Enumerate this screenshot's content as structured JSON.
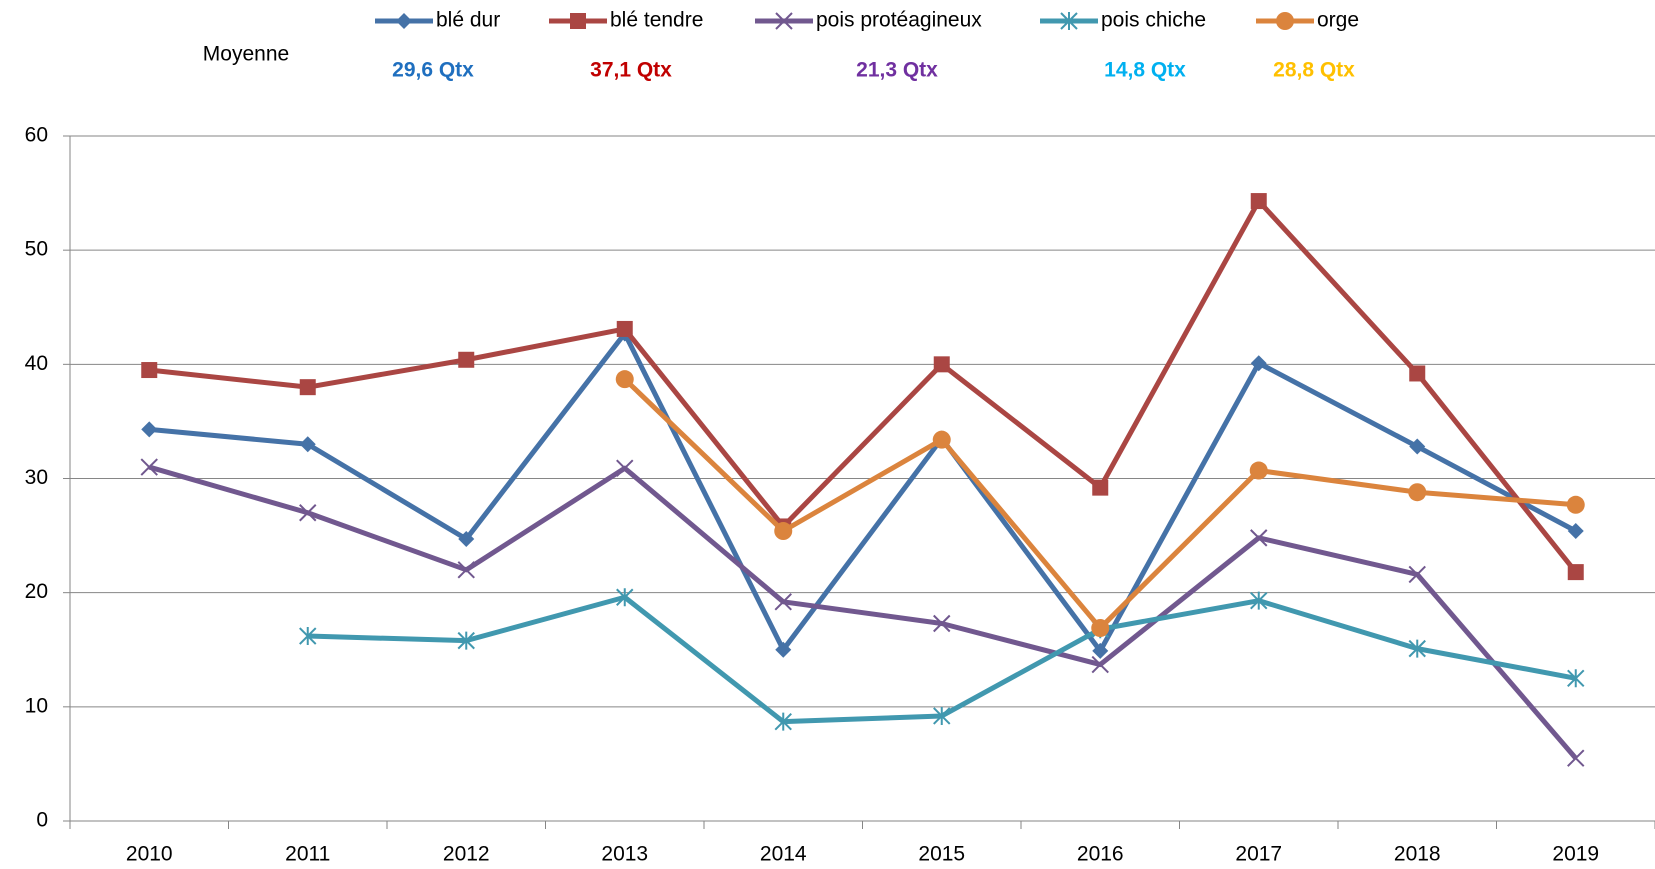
{
  "chart_data": {
    "type": "line",
    "categories": [
      "2010",
      "2011",
      "2012",
      "2013",
      "2014",
      "2015",
      "2016",
      "2017",
      "2018",
      "2019"
    ],
    "series": [
      {
        "name": "blé dur",
        "color": "#4572a7",
        "marker": "diamond",
        "values": [
          34.3,
          33.0,
          24.7,
          42.7,
          15.0,
          33.5,
          14.9,
          40.1,
          32.8,
          25.4
        ]
      },
      {
        "name": "blé tendre",
        "color": "#aa4643",
        "marker": "square",
        "values": [
          39.5,
          38.0,
          40.4,
          43.1,
          25.8,
          40.0,
          29.2,
          54.3,
          39.2,
          21.8
        ]
      },
      {
        "name": "pois protéagineux",
        "color": "#71588f",
        "marker": "x",
        "values": [
          31.0,
          27.0,
          22.0,
          30.9,
          19.2,
          17.3,
          13.7,
          24.8,
          21.6,
          5.5
        ]
      },
      {
        "name": "pois chiche",
        "color": "#4198af",
        "marker": "star",
        "values": [
          null,
          16.2,
          15.8,
          19.6,
          8.7,
          9.2,
          16.8,
          19.3,
          15.1,
          12.5
        ]
      },
      {
        "name": "orge",
        "color": "#db843d",
        "marker": "circle",
        "values": [
          null,
          null,
          null,
          38.7,
          25.4,
          33.4,
          16.9,
          30.7,
          28.8,
          27.7
        ]
      }
    ],
    "annotations": [
      {
        "text": "Moyenne",
        "color": "#000000"
      },
      {
        "text": "29,6 Qtx",
        "color": "#1f6fbf"
      },
      {
        "text": "37,1 Qtx",
        "color": "#c00000"
      },
      {
        "text": "21,3 Qtx",
        "color": "#7030a0"
      },
      {
        "text": "14,8 Qtx",
        "color": "#00b0f0"
      },
      {
        "text": "28,8 Qtx",
        "color": "#ffc000"
      }
    ],
    "ylim": [
      0,
      60
    ],
    "yticks": [
      0,
      10,
      20,
      30,
      40,
      50,
      60
    ],
    "grid": true,
    "legend": "top"
  }
}
